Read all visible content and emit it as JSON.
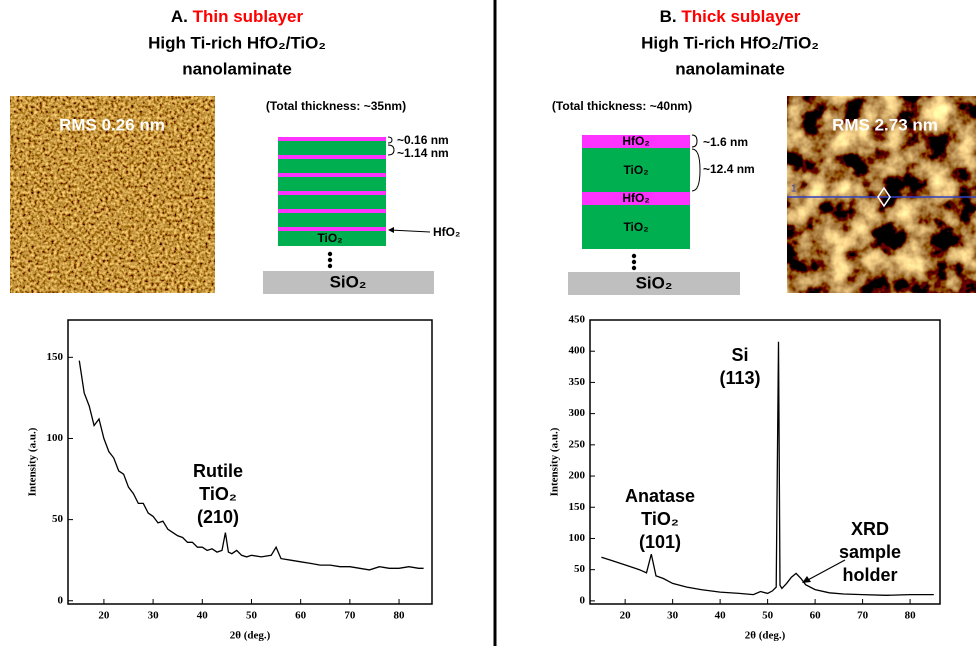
{
  "panels": [
    {
      "letter": "A.",
      "title": "Thin sublayer",
      "subtitle_1": "High Ti-rich HfO₂/TiO₂",
      "subtitle_2": "nanolaminate",
      "afm_label": "RMS 0.26 nm",
      "total_thickness": "(Total thickness: ~35nm)",
      "stack_labels": [
        "~0.16 nm",
        "~1.14 nm",
        "HfO₂",
        "TiO₂",
        "SiO₂"
      ]
    },
    {
      "letter": "B.",
      "title": "Thick sublayer",
      "subtitle_1": "High Ti-rich HfO₂/TiO₂",
      "subtitle_2": "nanolaminate",
      "afm_label": "RMS 2.73 nm",
      "afm_marker": "1",
      "total_thickness": "(Total thickness: ~40nm)",
      "stack_labels": [
        "HfO₂",
        "TiO₂",
        "HfO₂",
        "TiO₂",
        "~1.6 nm",
        "~12.4 nm",
        "SiO₂"
      ]
    }
  ],
  "chart_data": [
    {
      "type": "line",
      "x_label": "2θ (deg.)",
      "y_label": "Intensity (a.u.)",
      "color": "#000000",
      "xlim": [
        12.7,
        86.7
      ],
      "ylim": [
        -2,
        173
      ],
      "xticks": [
        20,
        30,
        40,
        50,
        60,
        70,
        80
      ],
      "yticks": [
        0,
        50,
        100,
        150
      ],
      "x": [
        15,
        16,
        17,
        18,
        19,
        20,
        21,
        22,
        23,
        24,
        25,
        26,
        27,
        28,
        29,
        30,
        31,
        32,
        33,
        34,
        35,
        36,
        37,
        38,
        39,
        40,
        41,
        42,
        43,
        44,
        44.7,
        45.3,
        46,
        47,
        48,
        49,
        50,
        52,
        54,
        55,
        56,
        58,
        60,
        62,
        64,
        66,
        68,
        70,
        72,
        74,
        76,
        78,
        80,
        82,
        84,
        85
      ],
      "values": [
        148,
        128,
        120,
        108,
        112,
        100,
        92,
        88,
        80,
        78,
        70,
        66,
        60,
        60,
        54,
        52,
        48,
        49,
        44,
        42,
        40,
        39,
        36,
        36,
        33,
        33,
        31,
        32,
        30,
        31,
        42,
        30,
        29,
        31,
        28,
        27,
        28,
        27,
        28,
        33,
        26,
        25,
        24,
        23,
        22,
        22,
        21,
        21,
        20,
        19,
        21,
        20,
        20,
        21,
        20,
        20
      ],
      "annotation": [
        "Rutile",
        "TiO₂",
        "(210)"
      ]
    },
    {
      "type": "line",
      "x_label": "2θ (deg.)",
      "y_label": "Intensity (a.u.)",
      "color": "#000000",
      "xlim": [
        12.6,
        86.3
      ],
      "ylim": [
        -5,
        450
      ],
      "xticks": [
        20,
        30,
        40,
        50,
        60,
        70,
        80
      ],
      "yticks": [
        0,
        50,
        100,
        150,
        200,
        250,
        300,
        350,
        400,
        450
      ],
      "x": [
        15,
        17,
        19,
        21,
        23,
        24.5,
        25.5,
        26.5,
        28,
        30,
        33,
        36,
        40,
        44,
        47,
        48.5,
        50,
        51,
        51.8,
        52.3,
        52.6,
        53,
        54,
        55,
        56,
        57,
        58,
        60,
        63,
        66,
        70,
        75,
        80,
        85
      ],
      "values": [
        70,
        65,
        60,
        55,
        50,
        45,
        75,
        40,
        36,
        28,
        22,
        18,
        14,
        12,
        10,
        15,
        12,
        16,
        22,
        415,
        25,
        20,
        28,
        38,
        44,
        36,
        26,
        18,
        13,
        11,
        10,
        9,
        10,
        10
      ],
      "annotation_peak": [
        "Si",
        "(113)"
      ],
      "annotation_anatase": [
        "Anatase",
        "TiO₂",
        "(101)"
      ],
      "annotation_holder": [
        "XRD",
        "sample",
        "holder"
      ]
    }
  ]
}
